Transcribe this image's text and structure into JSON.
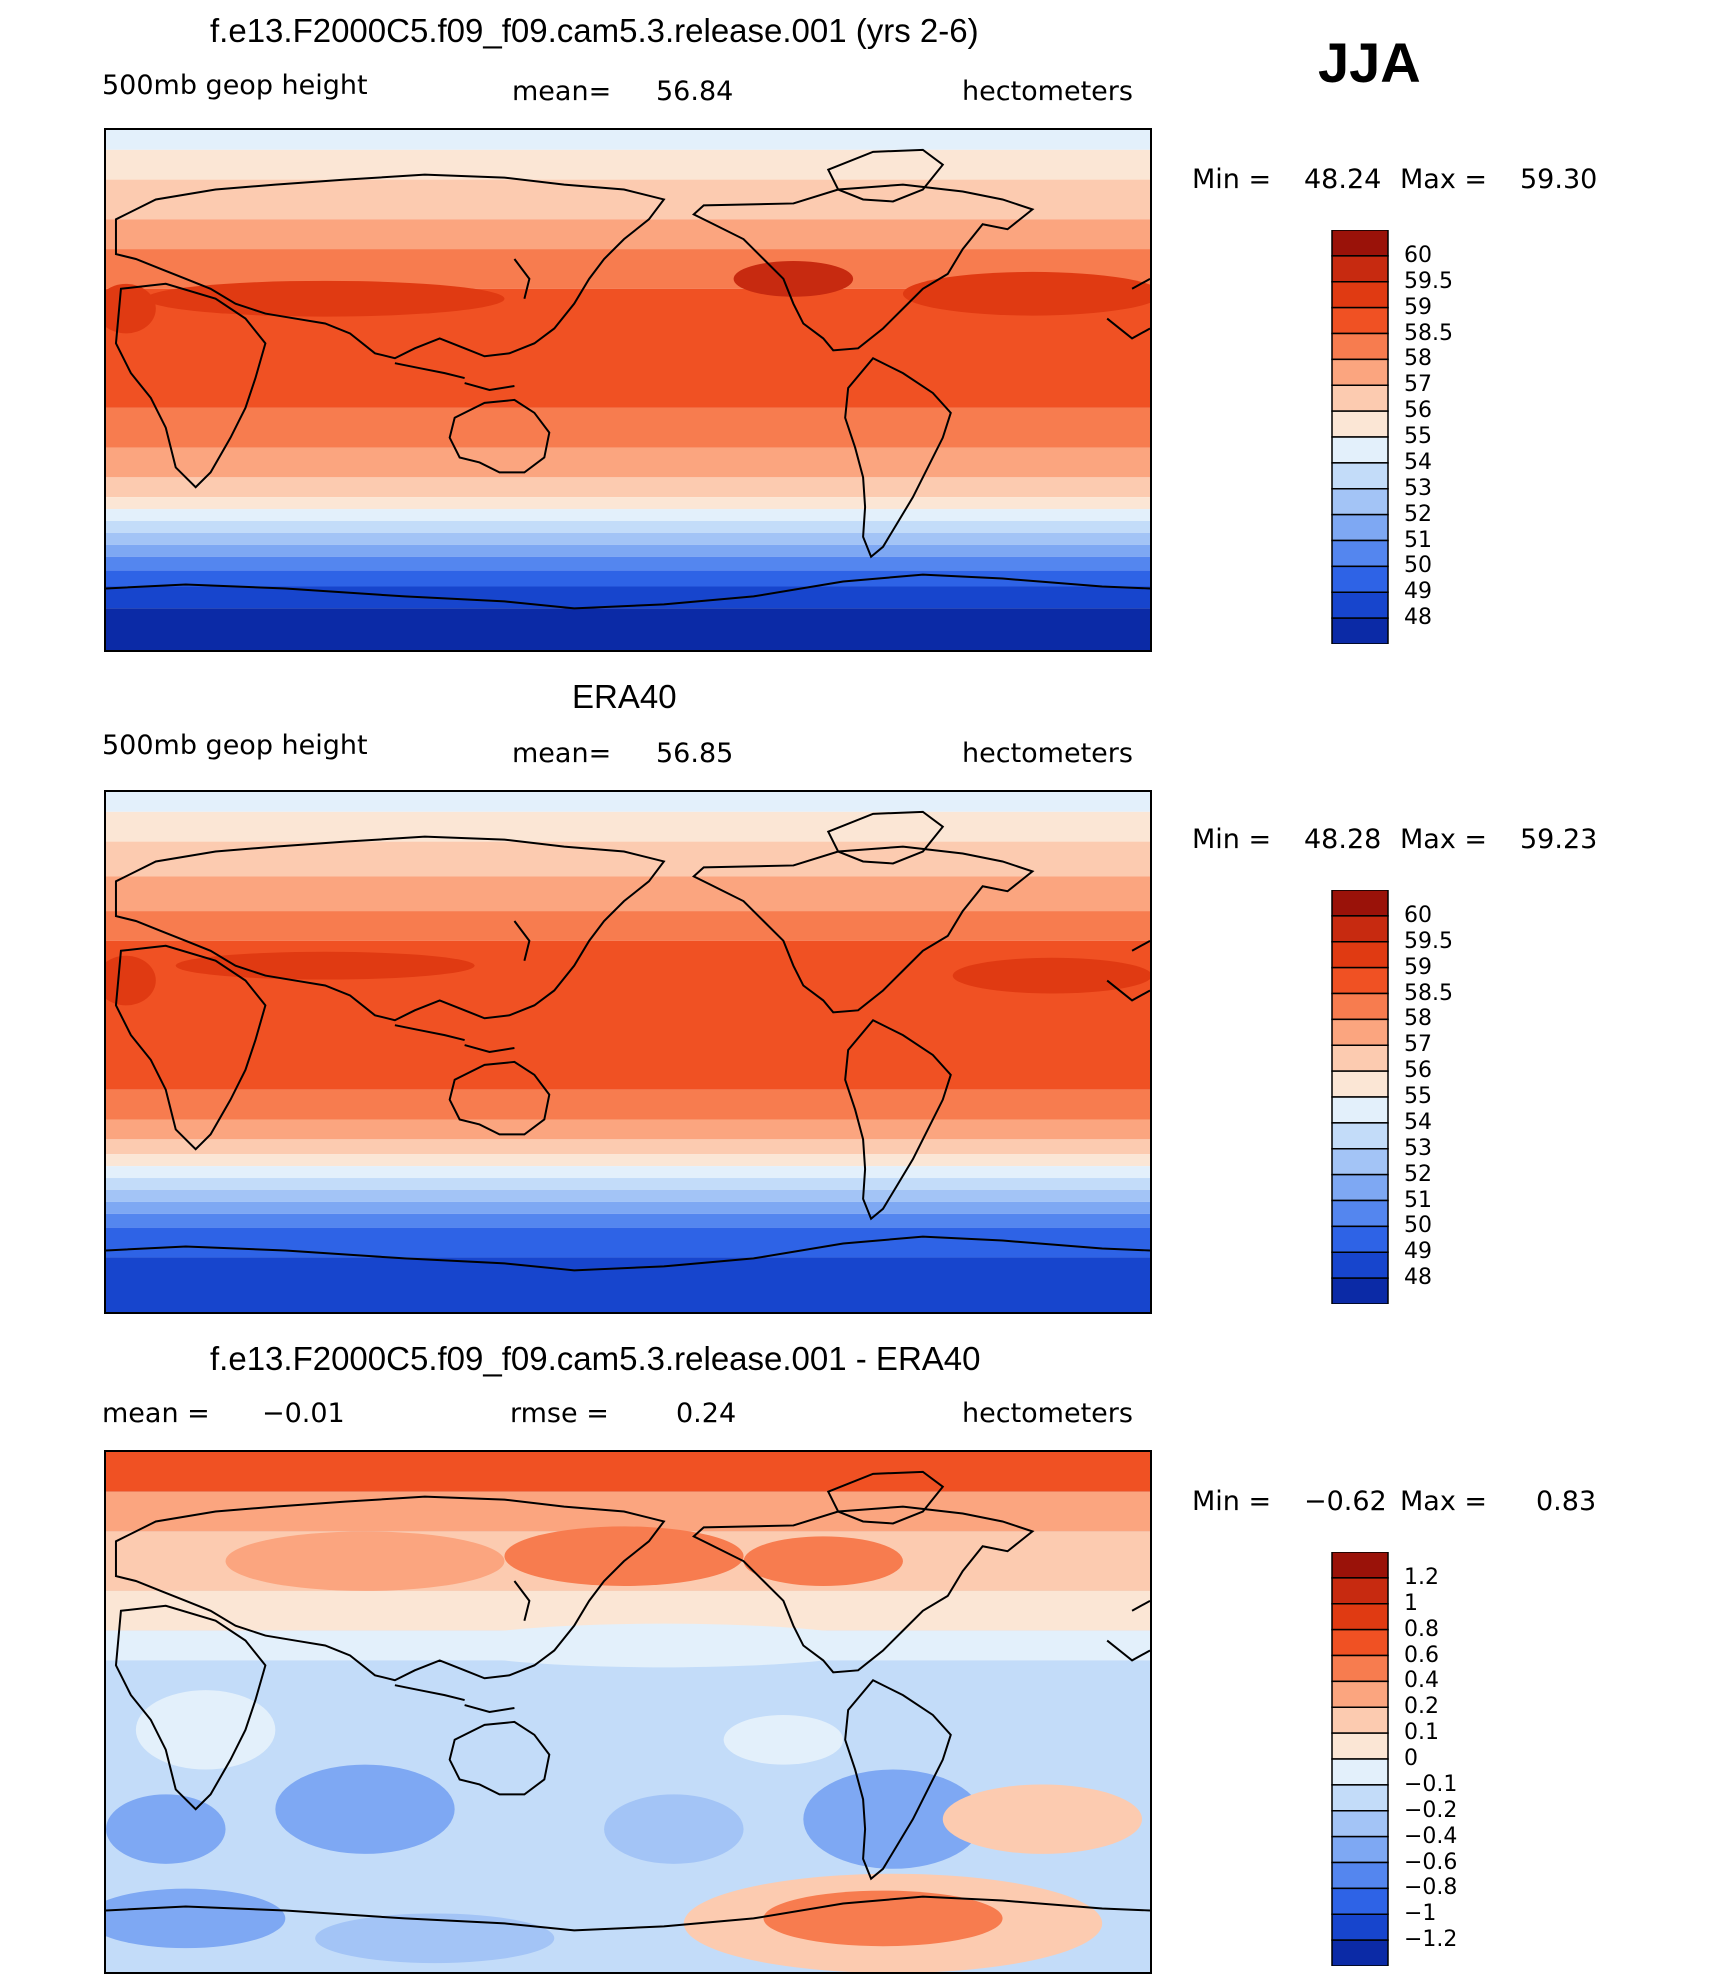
{
  "season": "JJA",
  "colors": {
    "warm": [
      "#fbe6d5",
      "#fccbb0",
      "#fba57f",
      "#f77c4f",
      "#f05123",
      "#e03a12",
      "#c72a10",
      "#9a1209"
    ],
    "cool": [
      "#e3f0fb",
      "#c3dcf9",
      "#a3c4f6",
      "#7ea8f3",
      "#5486ef",
      "#2e63e6",
      "#1745cd",
      "#0b2aa6",
      "#051a78"
    ]
  },
  "panels": [
    {
      "title": "f.e13.F2000C5.f09_f09.cam5.3.release.001 (yrs 2-6)",
      "variable": "500mb geop height",
      "mean_label": "mean=",
      "mean_value": "56.84",
      "units": "hectometers",
      "min_label": "Min =",
      "min_value": "48.24",
      "max_label": "Max =",
      "max_value": "59.30",
      "levels": [
        "60",
        "59.5",
        "59",
        "58.5",
        "58",
        "57",
        "56",
        "55",
        "54",
        "53",
        "52",
        "51",
        "50",
        "49",
        "48"
      ]
    },
    {
      "title": "ERA40",
      "variable": "500mb geop height",
      "mean_label": "mean=",
      "mean_value": "56.85",
      "units": "hectometers",
      "min_label": "Min =",
      "min_value": "48.28",
      "max_label": "Max =",
      "max_value": "59.23",
      "levels": [
        "60",
        "59.5",
        "59",
        "58.5",
        "58",
        "57",
        "56",
        "55",
        "54",
        "53",
        "52",
        "51",
        "50",
        "49",
        "48"
      ]
    },
    {
      "title": "f.e13.F2000C5.f09_f09.cam5.3.release.001 - ERA40",
      "mean_label": "mean =",
      "mean_value": "−0.01",
      "rmse_label": "rmse =",
      "rmse_value": "0.24",
      "units": "hectometers",
      "min_label": "Min =",
      "min_value": "−0.62",
      "max_label": "Max =",
      "max_value": "0.83",
      "levels": [
        "1.2",
        "1",
        "0.8",
        "0.6",
        "0.4",
        "0.2",
        "0.1",
        "0",
        "−0.1",
        "−0.2",
        "−0.4",
        "−0.6",
        "−0.8",
        "−1",
        "−1.2"
      ]
    }
  ]
}
